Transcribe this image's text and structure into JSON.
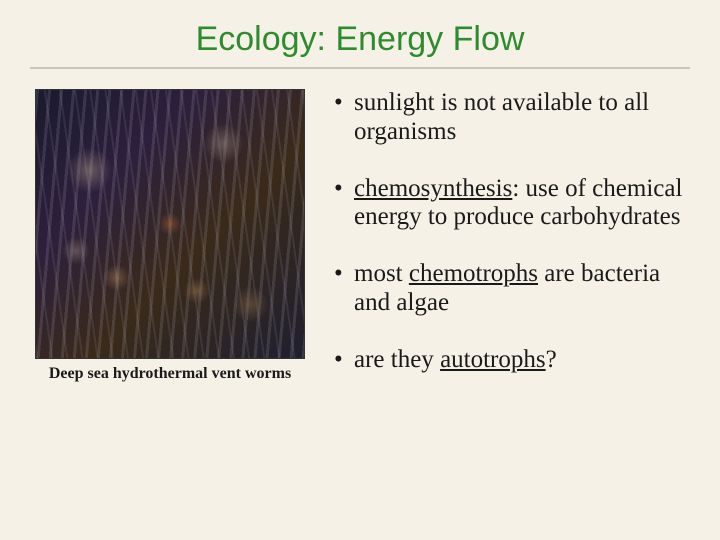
{
  "slide": {
    "title": "Ecology: Energy Flow",
    "title_color": "#2e8b2e",
    "title_fontsize": 34,
    "background_color": "#f5f1e6",
    "image": {
      "caption": "Deep sea hydrothermal vent worms",
      "caption_fontsize": 16
    },
    "bullets": [
      {
        "parts": [
          {
            "text": "sunlight is not available to all organisms",
            "underline": false
          }
        ]
      },
      {
        "parts": [
          {
            "text": "chemosynthesis",
            "underline": true
          },
          {
            "text": ": use of chemical energy to produce carbohydrates",
            "underline": false
          }
        ]
      },
      {
        "parts": [
          {
            "text": "most ",
            "underline": false
          },
          {
            "text": "chemotrophs",
            "underline": true
          },
          {
            "text": " are bacteria and algae",
            "underline": false
          }
        ]
      },
      {
        "parts": [
          {
            "text": "are they ",
            "underline": false
          },
          {
            "text": "autotrophs",
            "underline": true
          },
          {
            "text": "?",
            "underline": false
          }
        ]
      }
    ],
    "bullet_fontsize": 25
  }
}
